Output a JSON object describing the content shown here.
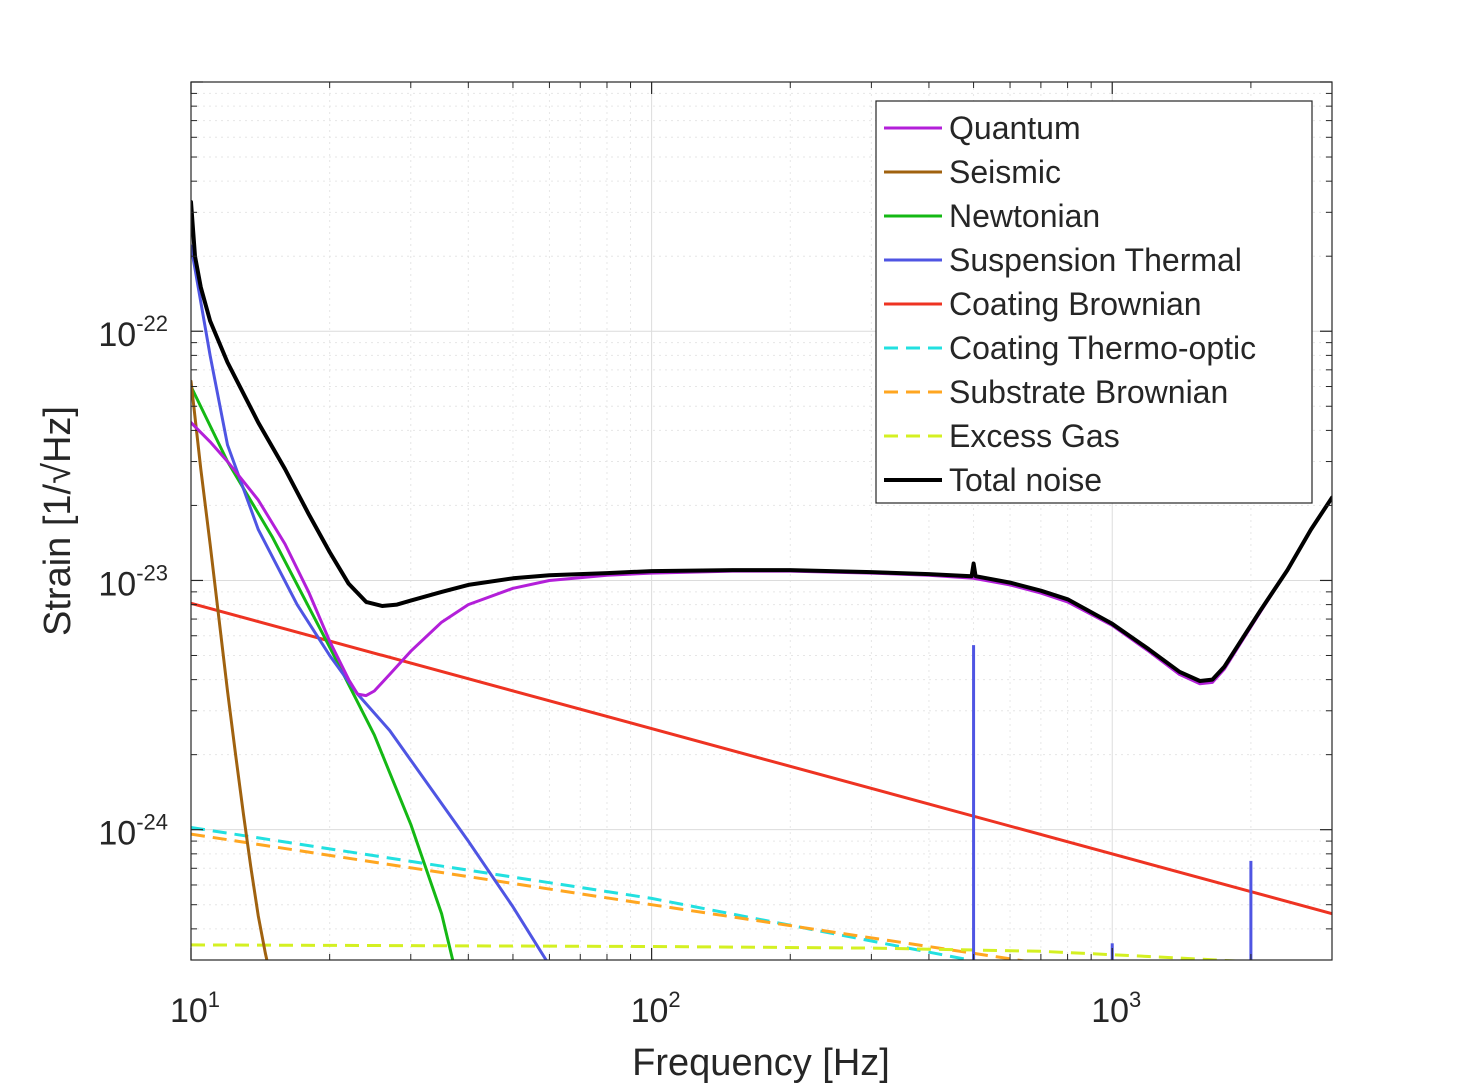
{
  "chart_data": {
    "type": "line",
    "xscale": "log",
    "yscale": "log",
    "xlabel": "Frequency [Hz]",
    "ylabel": "Strain [1/√Hz]",
    "xlim": [
      10,
      3000
    ],
    "ylim": [
      3e-25,
      1e-21
    ],
    "xticks": [
      {
        "base": "10",
        "exp": "1",
        "value": 10
      },
      {
        "base": "10",
        "exp": "2",
        "value": 100
      },
      {
        "base": "10",
        "exp": "3",
        "value": 1000
      }
    ],
    "yticks": [
      {
        "base": "10",
        "exp": "-24",
        "value": 1e-24
      },
      {
        "base": "10",
        "exp": "-23",
        "value": 1e-23
      },
      {
        "base": "10",
        "exp": "-22",
        "value": 1e-22
      }
    ],
    "grid": true,
    "legend_position": "top-right",
    "series": [
      {
        "name": "Quantum",
        "color": "#b31fd9",
        "dash": false,
        "x": [
          10,
          11,
          12,
          14,
          16,
          18,
          20,
          22,
          23,
          24,
          25,
          27,
          30,
          35,
          40,
          50,
          60,
          80,
          100,
          150,
          200,
          300,
          400,
          500,
          600,
          700,
          800,
          1000,
          1200,
          1400,
          1550,
          1650,
          1750,
          1900,
          2100,
          2400,
          2700,
          3000
        ],
        "y": [
          4.3e-23,
          3.6e-23,
          3e-23,
          2.1e-23,
          1.4e-23,
          9e-24,
          5.7e-24,
          4e-24,
          3.5e-24,
          3.45e-24,
          3.6e-24,
          4.2e-24,
          5.2e-24,
          6.8e-24,
          8e-24,
          9.3e-24,
          1e-23,
          1.05e-23,
          1.07e-23,
          1.09e-23,
          1.09e-23,
          1.07e-23,
          1.05e-23,
          1.02e-23,
          9.6e-24,
          8.9e-24,
          8.2e-24,
          6.6e-24,
          5.2e-24,
          4.2e-24,
          3.85e-24,
          3.9e-24,
          4.4e-24,
          5.6e-24,
          7.5e-24,
          1.1e-23,
          1.6e-23,
          2.15e-23
        ]
      },
      {
        "name": "Seismic",
        "color": "#a0620f",
        "dash": false,
        "x": [
          10,
          10.5,
          11,
          11.5,
          12,
          12.5,
          13,
          13.5,
          14,
          14.5,
          14.8
        ],
        "y": [
          6.3e-23,
          2.8e-23,
          1.4e-23,
          7e-24,
          3.6e-24,
          2e-24,
          1.15e-24,
          7e-25,
          4.5e-25,
          3.2e-25,
          2.7e-25
        ]
      },
      {
        "name": "Newtonian",
        "color": "#14b814",
        "dash": false,
        "x": [
          10,
          12,
          15,
          20,
          25,
          30,
          35,
          37
        ],
        "y": [
          6e-23,
          3e-23,
          1.5e-23,
          5.4e-24,
          2.4e-24,
          1.05e-24,
          4.6e-25,
          3e-25
        ]
      },
      {
        "name": "Suspension Thermal",
        "color": "#4f55e3",
        "dash": false,
        "x": [
          10,
          11,
          12,
          14,
          17,
          20,
          23,
          27,
          30,
          40,
          50,
          59
        ],
        "y": [
          2.2e-22,
          8e-23,
          3.5e-23,
          1.6e-23,
          8e-24,
          5e-24,
          3.5e-24,
          2.5e-24,
          1.9e-24,
          9e-25,
          4.9e-25,
          3e-25
        ],
        "spikes": [
          {
            "f": 500,
            "peak": 5.5e-24
          },
          {
            "f": 1000,
            "peak": 3.5e-25
          },
          {
            "f": 2000,
            "peak": 7.5e-25
          }
        ]
      },
      {
        "name": "Coating Brownian",
        "color": "#ee3322",
        "dash": false,
        "x": [
          10,
          3000
        ],
        "y": [
          8.1e-24,
          4.6e-25
        ]
      },
      {
        "name": "Coating Thermo-optic",
        "color": "#22e0e0",
        "dash": true,
        "x": [
          10,
          100,
          490
        ],
        "y": [
          1.02e-24,
          5.3e-25,
          3e-25
        ]
      },
      {
        "name": "Substrate Brownian",
        "color": "#ffa620",
        "dash": true,
        "x": [
          10,
          100,
          800
        ],
        "y": [
          9.6e-25,
          5e-25,
          2.8e-25
        ]
      },
      {
        "name": "Excess Gas",
        "color": "#d4f022",
        "dash": true,
        "x": [
          10,
          100,
          300,
          700,
          1200,
          2000
        ],
        "y": [
          3.45e-25,
          3.4e-25,
          3.35e-25,
          3.25e-25,
          3.1e-25,
          2.95e-25
        ]
      },
      {
        "name": "Total noise",
        "color": "#000000",
        "dash": false,
        "x": [
          10,
          10.2,
          10.5,
          11,
          12,
          14,
          16,
          18,
          20,
          22,
          24,
          26,
          28,
          30,
          35,
          40,
          50,
          60,
          80,
          100,
          150,
          200,
          300,
          400,
          495,
          500,
          505,
          600,
          700,
          800,
          1000,
          1200,
          1400,
          1550,
          1650,
          1750,
          1900,
          2100,
          2400,
          2700,
          3000
        ],
        "y": [
          3.3e-22,
          2e-22,
          1.5e-22,
          1.1e-22,
          7.5e-23,
          4.3e-23,
          2.8e-23,
          1.85e-23,
          1.3e-23,
          9.7e-24,
          8.2e-24,
          7.9e-24,
          8e-24,
          8.3e-24,
          9e-24,
          9.6e-24,
          1.02e-23,
          1.05e-23,
          1.07e-23,
          1.09e-23,
          1.1e-23,
          1.1e-23,
          1.08e-23,
          1.06e-23,
          1.04e-23,
          1.17e-23,
          1.04e-23,
          9.8e-24,
          9.1e-24,
          8.4e-24,
          6.7e-24,
          5.3e-24,
          4.3e-24,
          3.95e-24,
          4e-24,
          4.5e-24,
          5.7e-24,
          7.6e-24,
          1.1e-23,
          1.6e-23,
          2.15e-23
        ]
      }
    ]
  }
}
